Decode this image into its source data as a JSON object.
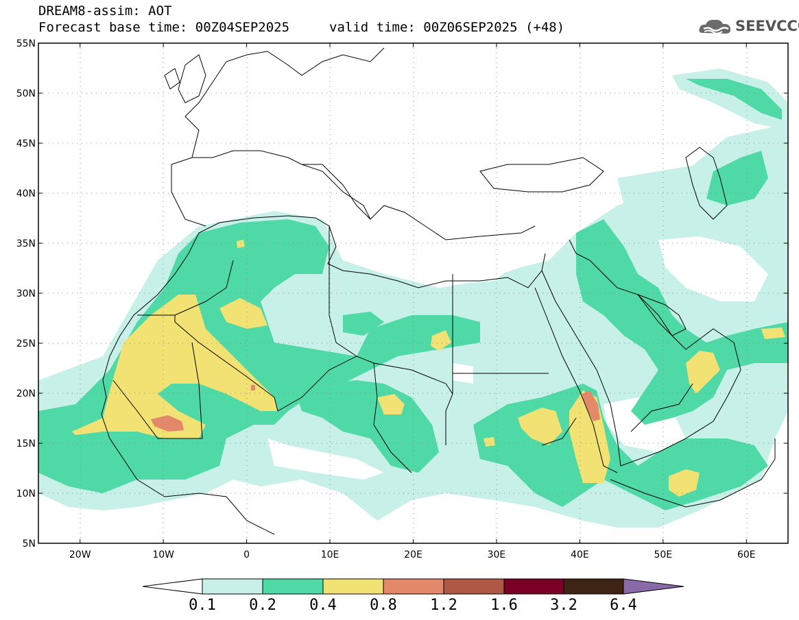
{
  "header": {
    "title_line1": "DREAM8-assim: AOT",
    "title_line2": "Forecast base time: 00Z04SEP2025",
    "valid_time": "valid time: 00Z06SEP2025 (+48)",
    "logo_text": "SEEVCCC"
  },
  "map": {
    "lon_range": [
      -25,
      65
    ],
    "lat_range": [
      5,
      55
    ],
    "lat_labels": [
      "5N",
      "10N",
      "15N",
      "20N",
      "25N",
      "30N",
      "35N",
      "40N",
      "45N",
      "50N",
      "55N"
    ],
    "lon_labels": [
      "20W",
      "10W",
      "0",
      "10E",
      "20E",
      "30E",
      "40E",
      "50E",
      "60E"
    ]
  },
  "colorbar": {
    "labels": [
      "0.1",
      "0.2",
      "0.4",
      "0.8",
      "1.2",
      "1.6",
      "3.2",
      "6.4"
    ],
    "colors": [
      "#ffffff",
      "#c6f0e8",
      "#4fd9a6",
      "#f2e173",
      "#e3896a",
      "#b05846",
      "#7a0026",
      "#3e2415",
      "#8a6aa6"
    ]
  }
}
